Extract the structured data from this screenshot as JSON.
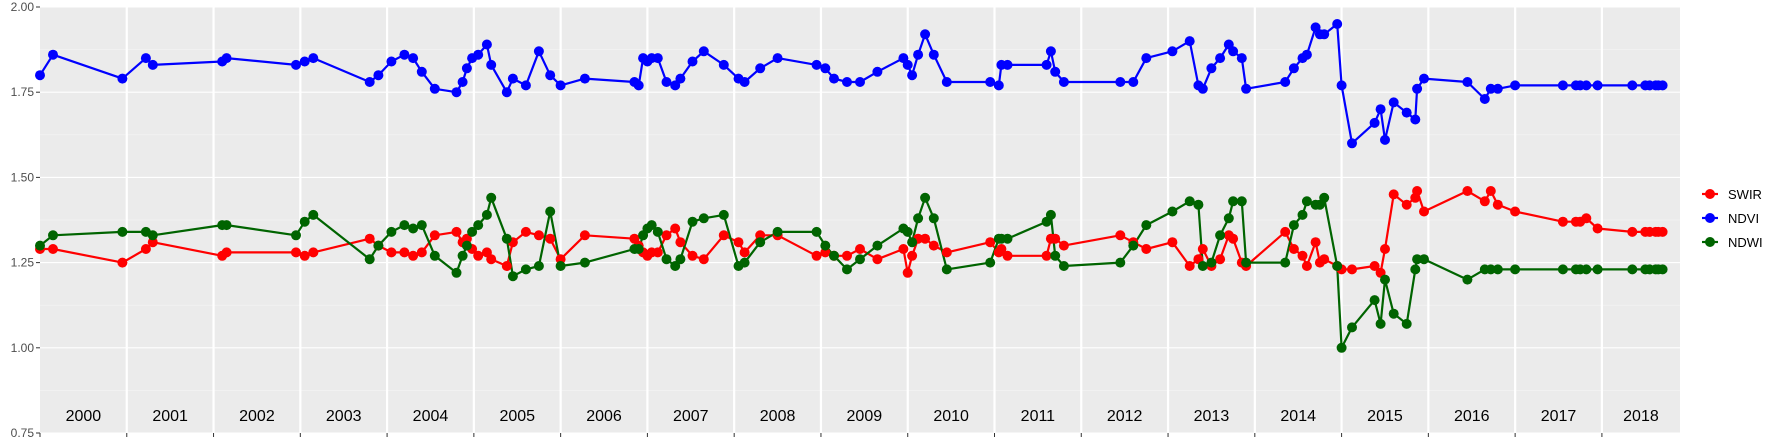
{
  "chart_data": {
    "type": "line",
    "ylim": [
      0.75,
      2.0
    ],
    "xlim": [
      2000.0,
      2018.9
    ],
    "y_ticks": [
      "0.75",
      "1.00",
      "1.25",
      "1.50",
      "1.75",
      "2.00"
    ],
    "year_labels": [
      "2000",
      "2001",
      "2002",
      "2003",
      "2004",
      "2005",
      "2006",
      "2007",
      "2008",
      "2009",
      "2010",
      "2011",
      "2012",
      "2013",
      "2014",
      "2015",
      "2016",
      "2017",
      "2018"
    ],
    "grid": true,
    "legend_position": "right",
    "x": [
      2000.0,
      2000.15,
      2000.95,
      2001.22,
      2001.3,
      2002.1,
      2002.15,
      2002.95,
      2003.05,
      2003.15,
      2003.8,
      2003.9,
      2004.05,
      2004.2,
      2004.3,
      2004.4,
      2004.55,
      2004.8,
      2004.87,
      2004.92,
      2004.98,
      2005.05,
      2005.15,
      2005.2,
      2005.38,
      2005.45,
      2005.6,
      2005.75,
      2005.88,
      2006.0,
      2006.28,
      2006.85,
      2006.9,
      2006.95,
      2007.0,
      2007.05,
      2007.12,
      2007.22,
      2007.32,
      2007.38,
      2007.52,
      2007.65,
      2007.88,
      2008.05,
      2008.12,
      2008.3,
      2008.5,
      2008.95,
      2009.05,
      2009.15,
      2009.3,
      2009.45,
      2009.65,
      2009.95,
      2010.0,
      2010.05,
      2010.12,
      2010.2,
      2010.3,
      2010.45,
      2010.95,
      2011.05,
      2011.08,
      2011.15,
      2011.6,
      2011.65,
      2011.7,
      2011.8,
      2012.45,
      2012.6,
      2012.75,
      2013.05,
      2013.25,
      2013.35,
      2013.4,
      2013.5,
      2013.6,
      2013.7,
      2013.75,
      2013.85,
      2013.9,
      2014.35,
      2014.45,
      2014.55,
      2014.6,
      2014.7,
      2014.75,
      2014.8,
      2014.95,
      2015.0,
      2015.12,
      2015.38,
      2015.45,
      2015.5,
      2015.6,
      2015.75,
      2015.85,
      2015.87,
      2015.95,
      2016.45,
      2016.65,
      2016.72,
      2016.8,
      2017.0,
      2017.55,
      2017.7,
      2017.75,
      2017.82,
      2017.95,
      2018.35,
      2018.5,
      2018.55,
      2018.62,
      2018.65,
      2018.7
    ],
    "series": [
      {
        "name": "SWIR",
        "color": "#ff0000",
        "values": [
          1.29,
          1.29,
          1.25,
          1.29,
          1.31,
          1.27,
          1.28,
          1.28,
          1.27,
          1.28,
          1.32,
          1.3,
          1.28,
          1.28,
          1.27,
          1.28,
          1.33,
          1.34,
          1.31,
          1.32,
          1.29,
          1.27,
          1.28,
          1.26,
          1.24,
          1.31,
          1.34,
          1.33,
          1.32,
          1.26,
          1.33,
          1.32,
          1.3,
          1.28,
          1.27,
          1.28,
          1.28,
          1.33,
          1.35,
          1.31,
          1.27,
          1.26,
          1.33,
          1.31,
          1.28,
          1.33,
          1.33,
          1.27,
          1.28,
          1.27,
          1.27,
          1.29,
          1.26,
          1.29,
          1.22,
          1.27,
          1.32,
          1.32,
          1.3,
          1.28,
          1.31,
          1.28,
          1.29,
          1.27,
          1.27,
          1.32,
          1.32,
          1.3,
          1.33,
          1.31,
          1.29,
          1.31,
          1.24,
          1.26,
          1.29,
          1.24,
          1.26,
          1.33,
          1.32,
          1.25,
          1.24,
          1.34,
          1.29,
          1.27,
          1.24,
          1.31,
          1.25,
          1.26,
          1.24,
          1.23,
          1.23,
          1.24,
          1.22,
          1.29,
          1.45,
          1.42,
          1.44,
          1.46,
          1.4,
          1.46,
          1.43,
          1.46,
          1.42,
          1.4,
          1.37,
          1.37,
          1.37,
          1.38,
          1.35,
          1.34,
          1.34,
          1.34,
          1.34,
          1.34,
          1.34
        ]
      },
      {
        "name": "NDVI",
        "color": "#0000ff",
        "values": [
          1.8,
          1.86,
          1.79,
          1.85,
          1.83,
          1.84,
          1.85,
          1.83,
          1.84,
          1.85,
          1.78,
          1.8,
          1.84,
          1.86,
          1.85,
          1.81,
          1.76,
          1.75,
          1.78,
          1.82,
          1.85,
          1.86,
          1.89,
          1.83,
          1.75,
          1.79,
          1.77,
          1.87,
          1.8,
          1.77,
          1.79,
          1.78,
          1.77,
          1.85,
          1.84,
          1.85,
          1.85,
          1.78,
          1.77,
          1.79,
          1.84,
          1.87,
          1.83,
          1.79,
          1.78,
          1.82,
          1.85,
          1.83,
          1.82,
          1.79,
          1.78,
          1.78,
          1.81,
          1.85,
          1.83,
          1.8,
          1.86,
          1.92,
          1.86,
          1.78,
          1.78,
          1.77,
          1.83,
          1.83,
          1.83,
          1.87,
          1.81,
          1.78,
          1.78,
          1.78,
          1.85,
          1.87,
          1.9,
          1.77,
          1.76,
          1.82,
          1.85,
          1.89,
          1.87,
          1.85,
          1.76,
          1.78,
          1.82,
          1.85,
          1.86,
          1.94,
          1.92,
          1.92,
          1.95,
          1.77,
          1.6,
          1.66,
          1.7,
          1.61,
          1.72,
          1.69,
          1.67,
          1.76,
          1.79,
          1.78,
          1.73,
          1.76,
          1.76,
          1.77,
          1.77,
          1.77,
          1.77,
          1.77,
          1.77,
          1.77,
          1.77,
          1.77,
          1.77,
          1.77,
          1.77
        ]
      },
      {
        "name": "NDWI",
        "color": "#006400",
        "values": [
          1.3,
          1.33,
          1.34,
          1.34,
          1.33,
          1.36,
          1.36,
          1.33,
          1.37,
          1.39,
          1.26,
          1.3,
          1.34,
          1.36,
          1.35,
          1.36,
          1.27,
          1.22,
          1.27,
          1.3,
          1.34,
          1.36,
          1.39,
          1.44,
          1.32,
          1.21,
          1.23,
          1.24,
          1.4,
          1.24,
          1.25,
          1.29,
          1.29,
          1.33,
          1.35,
          1.36,
          1.34,
          1.26,
          1.24,
          1.26,
          1.37,
          1.38,
          1.39,
          1.24,
          1.25,
          1.31,
          1.34,
          1.34,
          1.3,
          1.27,
          1.23,
          1.26,
          1.3,
          1.35,
          1.34,
          1.31,
          1.38,
          1.44,
          1.38,
          1.23,
          1.25,
          1.32,
          1.32,
          1.32,
          1.37,
          1.39,
          1.27,
          1.24,
          1.25,
          1.3,
          1.36,
          1.4,
          1.43,
          1.42,
          1.24,
          1.25,
          1.33,
          1.38,
          1.43,
          1.43,
          1.25,
          1.25,
          1.36,
          1.39,
          1.43,
          1.42,
          1.42,
          1.44,
          1.24,
          1.0,
          1.06,
          1.14,
          1.07,
          1.2,
          1.1,
          1.07,
          1.23,
          1.26,
          1.26,
          1.2,
          1.23,
          1.23,
          1.23,
          1.23,
          1.23,
          1.23,
          1.23,
          1.23,
          1.23,
          1.23,
          1.23,
          1.23,
          1.23,
          1.23,
          1.23
        ]
      }
    ]
  }
}
